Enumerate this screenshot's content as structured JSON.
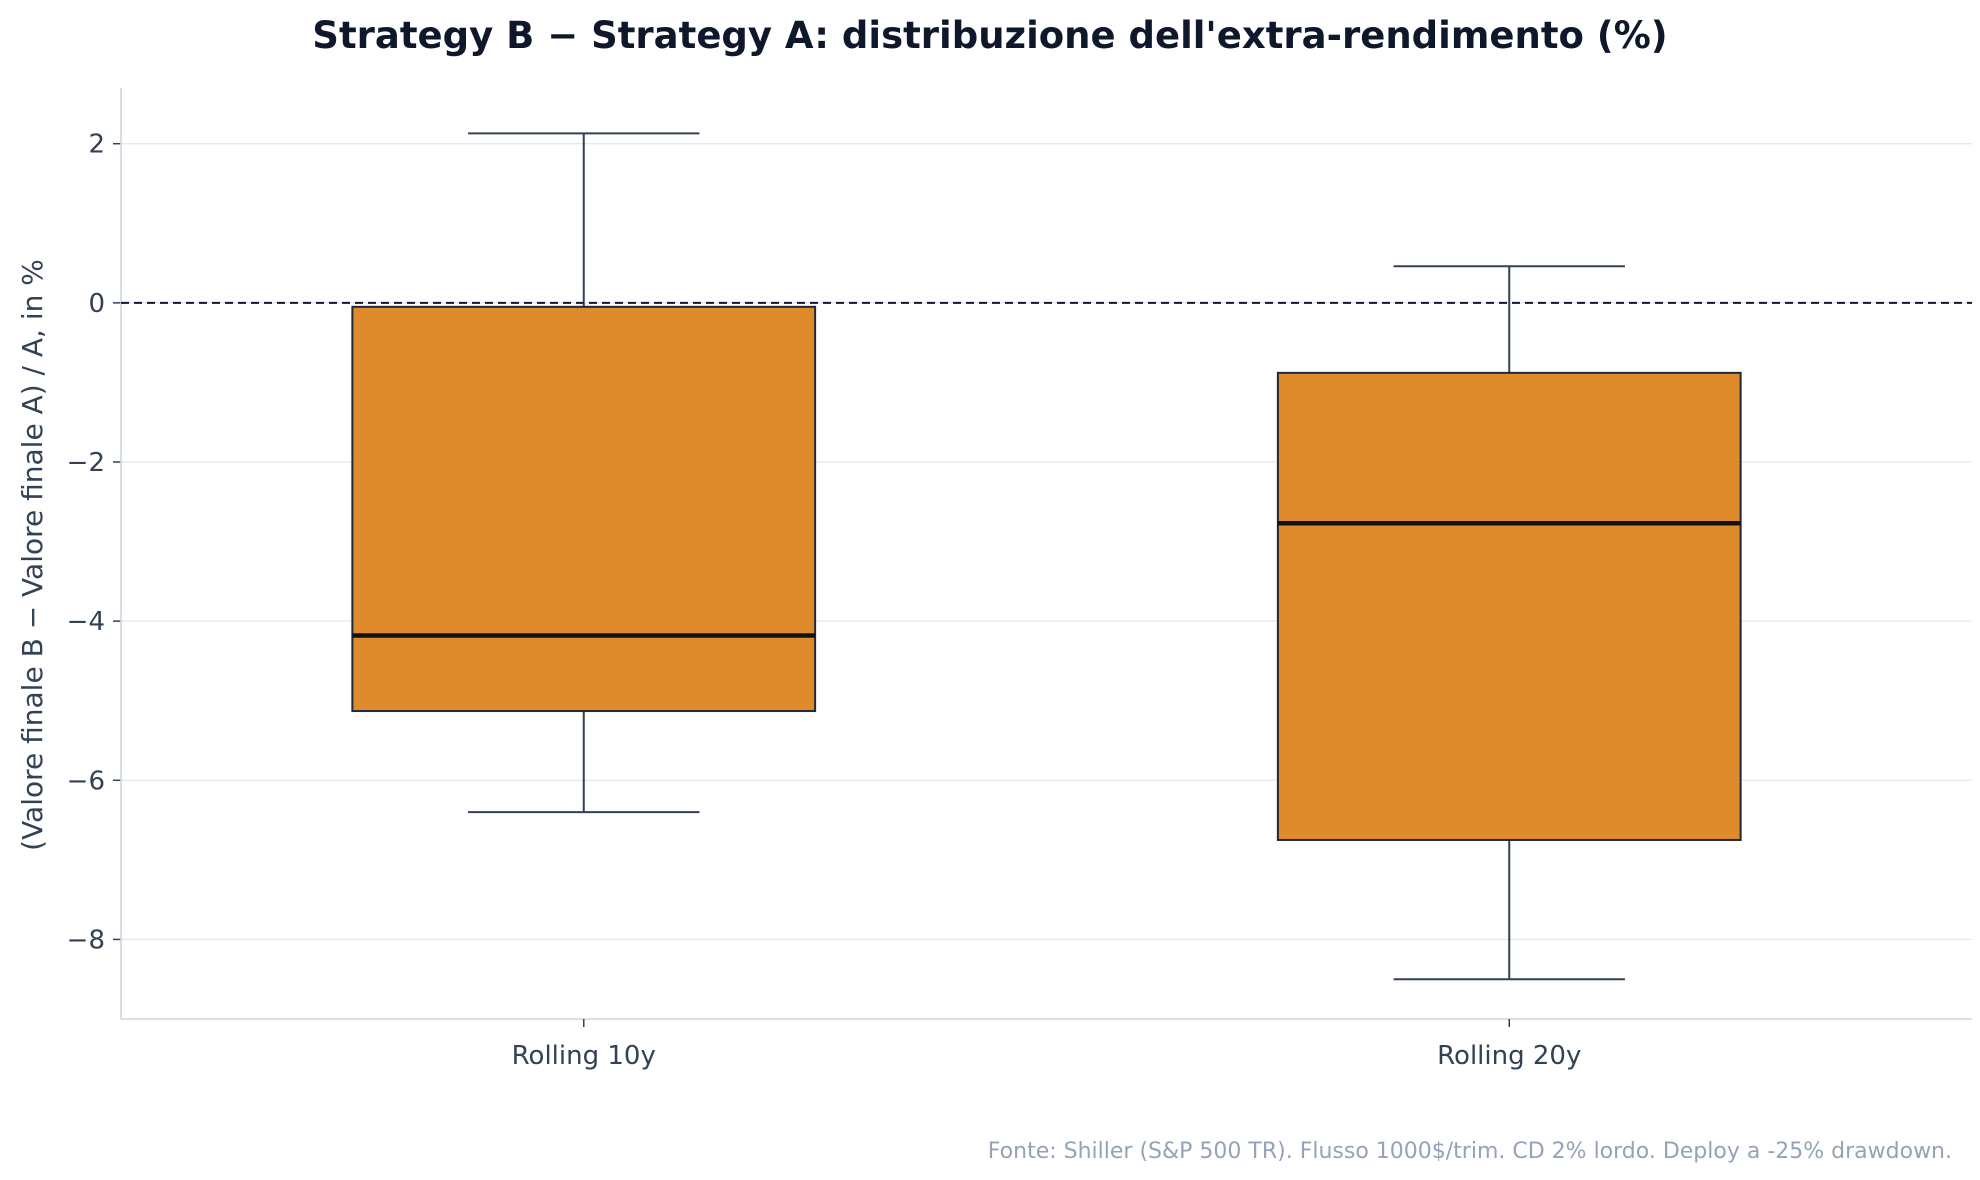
{
  "chart_data": {
    "type": "box",
    "title": "Strategy B − Strategy A: distribuzione dell'extra-rendimento (%)",
    "xlabel": "",
    "ylabel": "(Valore finale B − Valore finale A) / A, in %",
    "ylim": [
      -9.0,
      2.7
    ],
    "yticks": [
      2,
      0,
      -2,
      -4,
      -6,
      -8
    ],
    "ytick_labels": [
      "2",
      "0",
      "−2",
      "−4",
      "−6",
      "−8"
    ],
    "categories": [
      "Rolling 10y",
      "Rolling 20y"
    ],
    "boxes": [
      {
        "category": "Rolling 10y",
        "whisker_low": -6.4,
        "q1": -5.13,
        "median": -4.18,
        "q3": -0.05,
        "whisker_high": 2.13
      },
      {
        "category": "Rolling 20y",
        "whisker_low": -8.5,
        "q1": -6.75,
        "median": -2.77,
        "q3": -0.88,
        "whisker_high": 0.46
      }
    ],
    "reference_line": {
      "y": 0,
      "style": "dashed"
    },
    "grid": "horizontal",
    "colors": {
      "box_fill": "#d97706",
      "box_edge": "#1e293b",
      "median": "#111111",
      "whisker": "#334155",
      "grid": "#e2e8f0",
      "axis": "#cbd5e1",
      "reference": "#0f172a"
    }
  },
  "source_note": "Fonte: Shiller (S&P 500 TR). Flusso 1000$/trim. CD 2% lordo. Deploy a -25% drawdown."
}
